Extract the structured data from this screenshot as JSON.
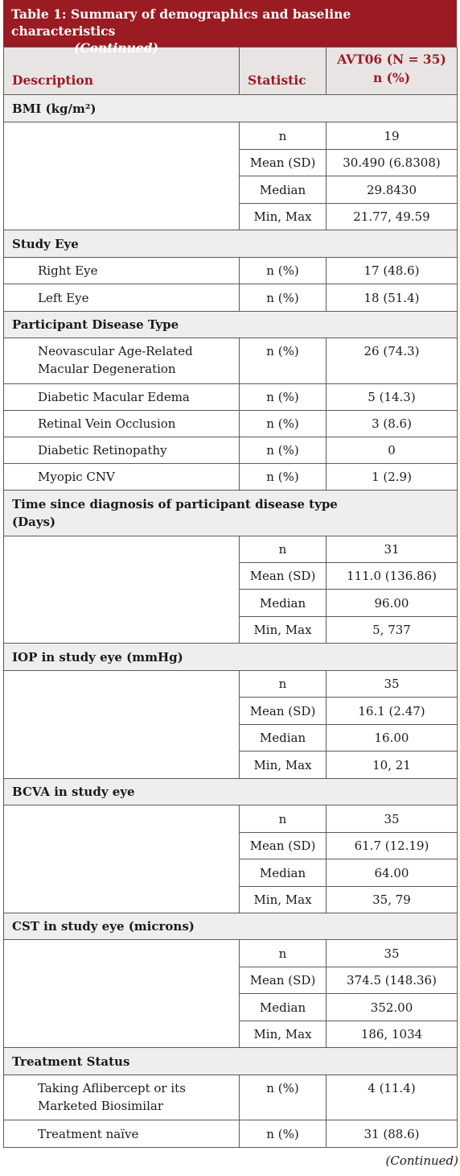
{
  "title": {
    "line1": "Table 1: Summary of demographics and baseline characteristics",
    "line2": "(Continued)"
  },
  "header": {
    "description": "Description",
    "statistic": "Statistic",
    "column_line1": "AVT06 (N = 35)",
    "column_line2": "n (%)"
  },
  "bmi": {
    "title": "BMI (kg/m²)",
    "rows": [
      {
        "stat": "n",
        "value": "19"
      },
      {
        "stat": "Mean (SD)",
        "value": "30.490 (6.8308)"
      },
      {
        "stat": "Median",
        "value": "29.8430"
      },
      {
        "stat": "Min, Max",
        "value": "21.77, 49.59"
      }
    ]
  },
  "study_eye": {
    "title": "Study Eye",
    "rows": [
      {
        "label": "Right Eye",
        "stat": "n (%)",
        "value": "17 (48.6)"
      },
      {
        "label": "Left Eye",
        "stat": "n (%)",
        "value": "18 (51.4)"
      }
    ]
  },
  "disease_type": {
    "title": "Participant Disease Type",
    "rows": [
      {
        "label_line1": "Neovascular Age-Related",
        "label_line2": "Macular Degeneration",
        "stat": "n (%)",
        "value": "26 (74.3)"
      },
      {
        "label": "Diabetic Macular Edema",
        "stat": "n (%)",
        "value": "5 (14.3)"
      },
      {
        "label": "Retinal Vein Occlusion",
        "stat": "n (%)",
        "value": "3 (8.6)"
      },
      {
        "label": "Diabetic Retinopathy",
        "stat": "n (%)",
        "value": "0"
      },
      {
        "label": "Myopic CNV",
        "stat": "n (%)",
        "value": "1 (2.9)"
      }
    ]
  },
  "time_since_diagnosis": {
    "title_line1": "Time since diagnosis of participant disease type",
    "title_line2": "(Days)",
    "rows": [
      {
        "stat": "n",
        "value": "31"
      },
      {
        "stat": "Mean (SD)",
        "value": "111.0 (136.86)"
      },
      {
        "stat": "Median",
        "value": "96.00"
      },
      {
        "stat": "Min, Max",
        "value": "5, 737"
      }
    ]
  },
  "iop": {
    "title": "IOP in study eye (mmHg)",
    "rows": [
      {
        "stat": "n",
        "value": "35"
      },
      {
        "stat": "Mean (SD)",
        "value": "16.1 (2.47)"
      },
      {
        "stat": "Median",
        "value": "16.00"
      },
      {
        "stat": "Min, Max",
        "value": "10, 21"
      }
    ]
  },
  "bcva": {
    "title": "BCVA in study eye",
    "rows": [
      {
        "stat": "n",
        "value": "35"
      },
      {
        "stat": "Mean (SD)",
        "value": "61.7 (12.19)"
      },
      {
        "stat": "Median",
        "value": "64.00"
      },
      {
        "stat": "Min, Max",
        "value": "35, 79"
      }
    ]
  },
  "cst": {
    "title": "CST in study eye (microns)",
    "rows": [
      {
        "stat": "n",
        "value": "35"
      },
      {
        "stat": "Mean (SD)",
        "value": "374.5 (148.36)"
      },
      {
        "stat": "Median",
        "value": "352.00"
      },
      {
        "stat": "Min, Max",
        "value": "186, 1034"
      }
    ]
  },
  "treatment_status": {
    "title": "Treatment Status",
    "rows": [
      {
        "label_line1": "Taking Aflibercept or its",
        "label_line2": "Marketed Biosimilar",
        "stat": "n (%)",
        "value": "4 (11.4)"
      },
      {
        "label": "Treatment naïve",
        "stat": "n (%)",
        "value": "31 (88.6)"
      }
    ]
  },
  "footer": "(Continued)"
}
